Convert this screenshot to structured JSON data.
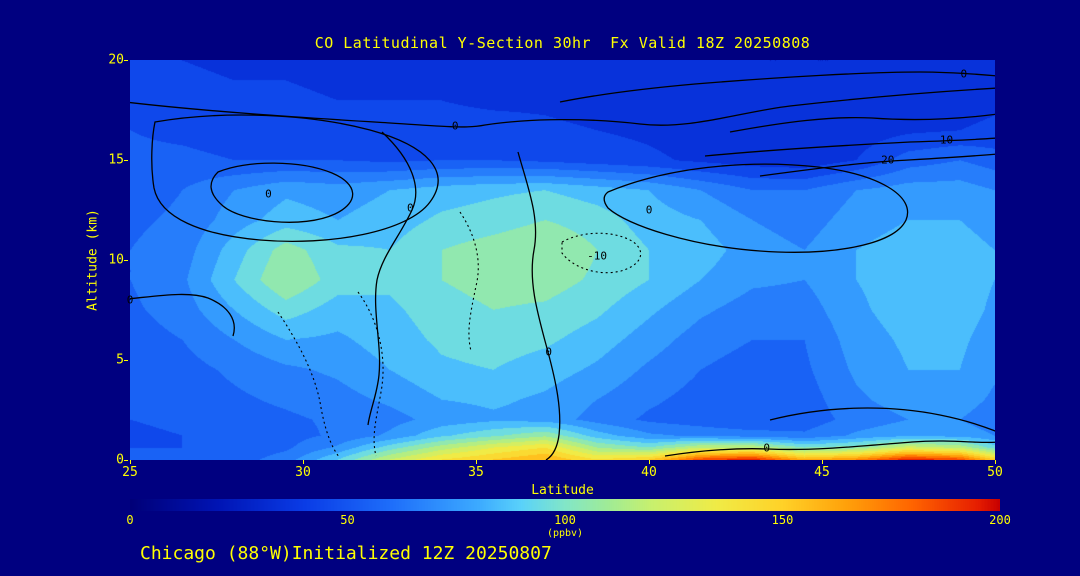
{
  "title": "CO Latitudinal Y-Section 30hr  Fx Valid 18Z 20250808",
  "footer": "Chicago (88°W)Initialized 12Z 20250807",
  "axes": {
    "x_label": "Latitude",
    "y_label": "Altitude (km)",
    "x_ticks": [
      "25",
      "30",
      "35",
      "40",
      "45",
      "50"
    ],
    "y_ticks": [
      "0",
      "5",
      "10",
      "15",
      "20"
    ]
  },
  "colorbar": {
    "ticks": [
      "0",
      "50",
      "100",
      "150",
      "200"
    ],
    "units": "(ppbv)",
    "min": 0,
    "max": 200
  },
  "colors": {
    "background": "#000080",
    "text": "#FFFF00",
    "contour": "#000000"
  },
  "colormap": [
    {
      "v": 0,
      "c": "#000078"
    },
    {
      "v": 20,
      "c": "#0014B4"
    },
    {
      "v": 40,
      "c": "#0A3CE6"
    },
    {
      "v": 60,
      "c": "#1E6EFA"
    },
    {
      "v": 80,
      "c": "#3CAAFF"
    },
    {
      "v": 90,
      "c": "#5AD2FA"
    },
    {
      "v": 100,
      "c": "#82E6C8"
    },
    {
      "v": 110,
      "c": "#A0EB96"
    },
    {
      "v": 120,
      "c": "#C8F06E"
    },
    {
      "v": 135,
      "c": "#F0EB46"
    },
    {
      "v": 150,
      "c": "#FFD228"
    },
    {
      "v": 165,
      "c": "#FFA00A"
    },
    {
      "v": 180,
      "c": "#FF6400"
    },
    {
      "v": 195,
      "c": "#E61E00"
    },
    {
      "v": 200,
      "c": "#C80000"
    }
  ],
  "chart_data": {
    "type": "heatmap",
    "title": "CO Latitudinal Y-Section 30hr  Fx Valid 18Z 20250808",
    "xlabel": "Latitude",
    "ylabel": "Altitude (km)",
    "units": "ppbv",
    "x_range": [
      25,
      50
    ],
    "y_range": [
      0,
      20
    ],
    "value_range": [
      0,
      200
    ],
    "x": [
      25,
      26.5,
      28,
      29.5,
      31,
      32.5,
      34,
      35.5,
      37,
      38.5,
      40,
      41.5,
      43,
      44.5,
      46,
      47.5,
      49,
      50
    ],
    "y": [
      0,
      0.6,
      1.2,
      2,
      3,
      4.5,
      6,
      7.5,
      9,
      10.5,
      12,
      13.5,
      15,
      16.5,
      18,
      20
    ],
    "values": [
      [
        55,
        52,
        55,
        65,
        90,
        120,
        140,
        150,
        160,
        140,
        150,
        185,
        195,
        160,
        170,
        195,
        185,
        150
      ],
      [
        50,
        50,
        52,
        58,
        72,
        95,
        115,
        130,
        140,
        110,
        100,
        120,
        120,
        100,
        105,
        125,
        118,
        95
      ],
      [
        48,
        50,
        52,
        56,
        62,
        72,
        88,
        98,
        108,
        85,
        72,
        68,
        65,
        62,
        72,
        78,
        76,
        70
      ],
      [
        50,
        52,
        55,
        58,
        62,
        66,
        74,
        78,
        76,
        66,
        58,
        54,
        50,
        54,
        64,
        70,
        70,
        64
      ],
      [
        50,
        54,
        58,
        62,
        66,
        72,
        80,
        82,
        78,
        70,
        62,
        56,
        52,
        55,
        68,
        75,
        75,
        68
      ],
      [
        52,
        56,
        62,
        68,
        72,
        80,
        88,
        90,
        85,
        78,
        68,
        60,
        55,
        58,
        72,
        80,
        80,
        72
      ],
      [
        55,
        60,
        70,
        80,
        78,
        85,
        92,
        95,
        92,
        85,
        75,
        65,
        60,
        60,
        75,
        82,
        82,
        75
      ],
      [
        58,
        65,
        80,
        95,
        85,
        88,
        95,
        100,
        98,
        92,
        82,
        72,
        65,
        65,
        78,
        85,
        85,
        78
      ],
      [
        60,
        68,
        90,
        110,
        95,
        92,
        100,
        105,
        105,
        98,
        90,
        80,
        72,
        70,
        80,
        85,
        85,
        80
      ],
      [
        60,
        65,
        85,
        105,
        92,
        90,
        100,
        105,
        110,
        100,
        90,
        85,
        75,
        70,
        80,
        85,
        85,
        80
      ],
      [
        58,
        62,
        75,
        85,
        80,
        85,
        92,
        95,
        100,
        95,
        85,
        80,
        70,
        65,
        75,
        80,
        80,
        75
      ],
      [
        55,
        60,
        70,
        78,
        75,
        80,
        85,
        88,
        90,
        85,
        80,
        70,
        60,
        60,
        70,
        75,
        75,
        70
      ],
      [
        52,
        52,
        50,
        50,
        50,
        48,
        50,
        50,
        48,
        45,
        42,
        38,
        35,
        33,
        40,
        55,
        60,
        55
      ],
      [
        50,
        48,
        46,
        46,
        45,
        45,
        44,
        44,
        42,
        40,
        38,
        35,
        32,
        30,
        34,
        38,
        40,
        42
      ],
      [
        45,
        44,
        42,
        42,
        40,
        40,
        40,
        38,
        38,
        36,
        35,
        34,
        32,
        30,
        32,
        34,
        36,
        38
      ],
      [
        40,
        40,
        38,
        38,
        36,
        36,
        35,
        35,
        34,
        34,
        33,
        32,
        30,
        30,
        30,
        32,
        33,
        34
      ]
    ],
    "contour_labels": [
      {
        "text": "0",
        "lat": 34.4,
        "alt": 16.7
      },
      {
        "text": "0",
        "lat": 49.1,
        "alt": 19.3
      },
      {
        "text": "10",
        "lat": 48.6,
        "alt": 16.0
      },
      {
        "text": "20",
        "lat": 46.9,
        "alt": 15.0
      },
      {
        "text": "0",
        "lat": 29.0,
        "alt": 13.3
      },
      {
        "text": "0",
        "lat": 33.1,
        "alt": 12.6
      },
      {
        "text": "0",
        "lat": 40.0,
        "alt": 12.5
      },
      {
        "text": "-10",
        "lat": 38.5,
        "alt": 10.2
      },
      {
        "text": "0",
        "lat": 37.1,
        "alt": 5.4
      },
      {
        "text": "0",
        "lat": 43.4,
        "alt": 0.6
      },
      {
        "text": "0",
        "lat": 25.0,
        "alt": 8.0
      }
    ]
  }
}
